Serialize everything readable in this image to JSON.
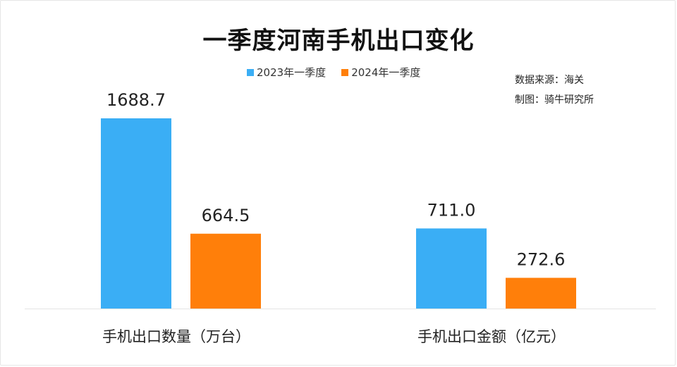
{
  "chart_data": {
    "type": "bar",
    "title": "一季度河南手机出口变化",
    "categories": [
      "手机出口数量（万台）",
      "手机出口金额（亿元）"
    ],
    "series": [
      {
        "name": "2023年一季度",
        "values": [
          1688.7,
          711.0
        ],
        "labels": [
          "1688.7",
          "711.0"
        ],
        "color": "#3aaef5"
      },
      {
        "name": "2024年一季度",
        "values": [
          664.5,
          272.6
        ],
        "labels": [
          "664.5",
          "272.6"
        ],
        "color": "#ff7f0a"
      }
    ],
    "legend_position": "top-center",
    "grid": false
  },
  "source": {
    "data_source": "数据来源：海关",
    "made_by": "制图：骑牛研究所"
  }
}
